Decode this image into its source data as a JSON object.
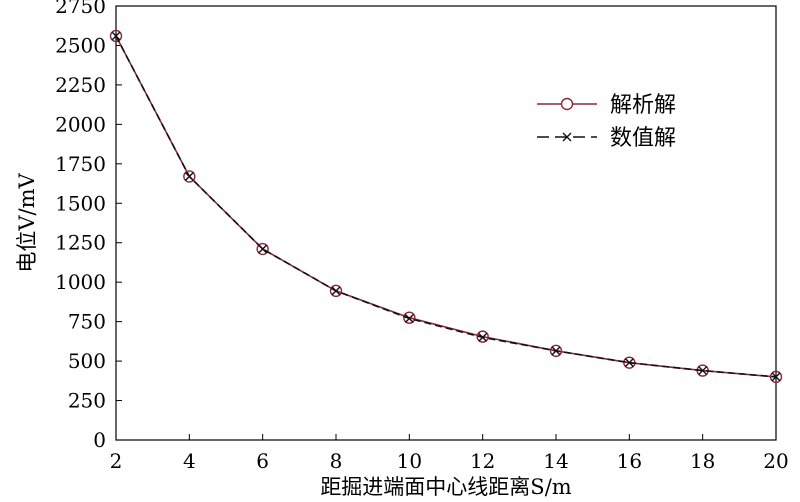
{
  "chart_data": {
    "type": "line",
    "title": "",
    "xlabel": "距掘进端面中心线距离S/m",
    "ylabel": "电位V/mV",
    "xlim": [
      2,
      20
    ],
    "ylim": [
      0,
      2750
    ],
    "x_ticks": [
      2,
      4,
      6,
      8,
      10,
      12,
      14,
      16,
      18,
      20
    ],
    "y_ticks": [
      0,
      250,
      500,
      750,
      1000,
      1250,
      1500,
      1750,
      2000,
      2250,
      2500,
      2750
    ],
    "grid": false,
    "legend_position": "top-right",
    "x": [
      2,
      4,
      6,
      8,
      10,
      12,
      14,
      16,
      18,
      20
    ],
    "series": [
      {
        "name": "解析解",
        "marker": "circle",
        "line_style": "solid",
        "color": "#8b2a3a",
        "values": [
          2560,
          1670,
          1210,
          945,
          775,
          655,
          565,
          490,
          440,
          400
        ]
      },
      {
        "name": "数值解",
        "marker": "x",
        "line_style": "dashed",
        "color": "#111111",
        "values": [
          2560,
          1670,
          1210,
          945,
          770,
          650,
          565,
          490,
          440,
          400
        ]
      }
    ]
  }
}
